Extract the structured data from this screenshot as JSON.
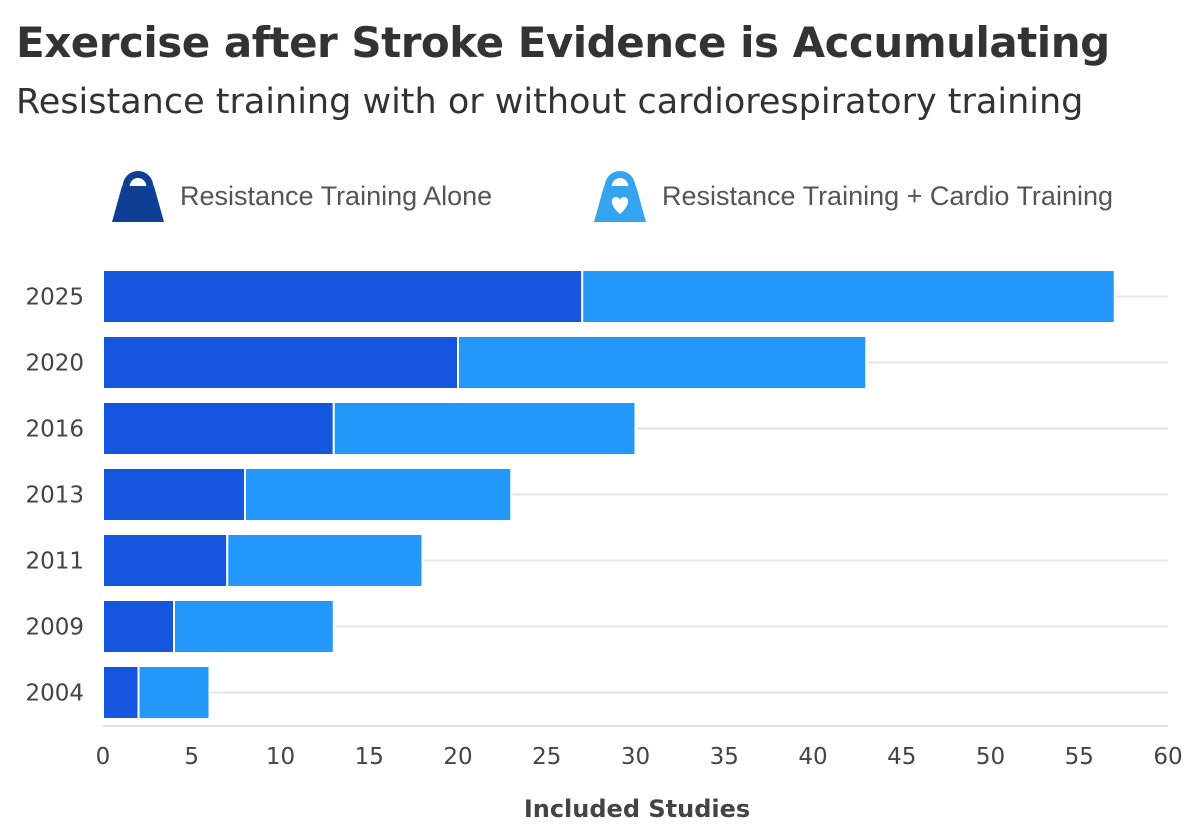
{
  "title": "Exercise after Stroke Evidence is Accumulating",
  "subtitle": "Resistance training with or without cardiorespiratory training",
  "legend": [
    {
      "label": "Resistance Training Alone",
      "icon": "kettlebell-icon",
      "color": "#0f3f95"
    },
    {
      "label": "Resistance Training + Cardio Training",
      "icon": "kettlebell-heart-icon",
      "color": "#35a4ee"
    }
  ],
  "chart_data": {
    "type": "bar",
    "orientation": "horizontal",
    "stacked": true,
    "categories": [
      "2025",
      "2020",
      "2016",
      "2013",
      "2011",
      "2009",
      "2004"
    ],
    "series": [
      {
        "name": "Resistance Training Alone",
        "values": [
          27,
          20,
          13,
          8,
          7,
          4,
          2
        ],
        "color": "#1457de"
      },
      {
        "name": "Resistance Training + Cardio Training",
        "values": [
          30,
          23,
          17,
          15,
          11,
          9,
          4
        ],
        "color": "#2398fb"
      }
    ],
    "xlabel": "Included Studies",
    "ylabel": "",
    "xlim": [
      0,
      60
    ],
    "xticks": [
      "0",
      "5",
      "10",
      "15",
      "20",
      "25",
      "30",
      "35",
      "40",
      "45",
      "50",
      "55",
      "60"
    ],
    "grid": true
  }
}
